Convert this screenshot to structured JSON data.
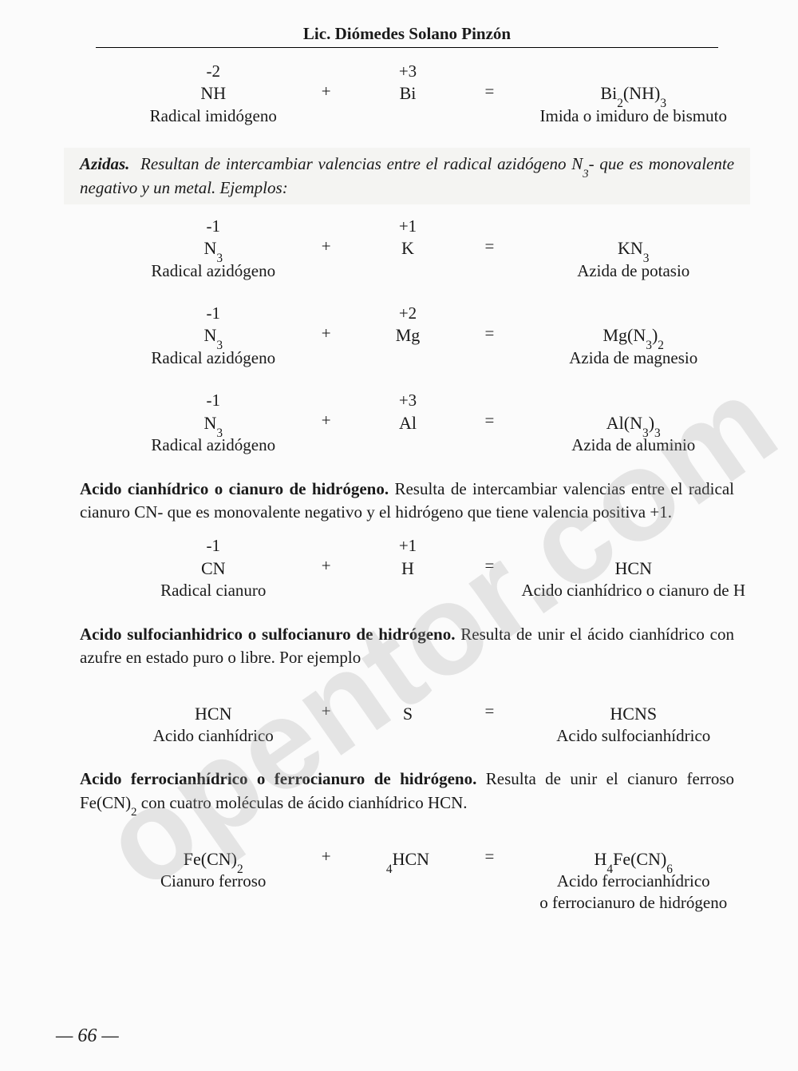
{
  "watermark": "opentor.com",
  "header": "Lic. Diómedes Solano Pinzón",
  "eq1": {
    "left_val": "-2",
    "left_f_pre": "NH",
    "left_label": "Radical imidógeno",
    "mid_val": "+3",
    "mid_f": "Bi",
    "prod_pre": "Bi",
    "prod_sub1": "2",
    "prod_mid": "(NH)",
    "prod_sub2": "3",
    "prod_label": "Imida o imiduro de bismuto"
  },
  "azidas": {
    "title": "Azidas.",
    "text": "Resultan de intercambiar valencias entre el radical azidógeno N",
    "text2": "- que es monovalente negativo y un metal.  Ejemplos:",
    "sub": "3"
  },
  "eq2": {
    "left_val": "-1",
    "left_f": "N",
    "left_sub": "3",
    "left_label": "Radical azidógeno",
    "mid_val": "+1",
    "mid_f": "K",
    "prod_pre": "KN",
    "prod_sub": "3",
    "prod_label": "Azida de potasio"
  },
  "eq3": {
    "left_val": "-1",
    "left_f": "N",
    "left_sub": "3",
    "left_label": "Radical azidógeno",
    "mid_val": "+2",
    "mid_f": "Mg",
    "prod_pre": "Mg(N",
    "prod_sub1": "3",
    "prod_mid": ")",
    "prod_sub2": "2",
    "prod_label": "Azida de magnesio"
  },
  "eq4": {
    "left_val": "-1",
    "left_f": "N",
    "left_sub": "3",
    "left_label": "Radical azidógeno",
    "mid_val": "+3",
    "mid_f": "Al",
    "prod_pre": "Al(N",
    "prod_sub1": "3",
    "prod_mid": ")",
    "prod_sub2": "3",
    "prod_label": "Azida de aluminio"
  },
  "sec1": {
    "title": "Acido cianhídrico o cianuro de hidrógeno.",
    "text": "Resulta de intercambiar valencias entre el radical cianuro CN- que es monovalente negativo y el hidrógeno que tiene valencia positiva +1."
  },
  "eq5": {
    "left_val": "-1",
    "left_f": "CN",
    "left_label": "Radical cianuro",
    "mid_val": "+1",
    "mid_f": "H",
    "prod_f": "HCN",
    "prod_label": "Acido cianhídrico o cianuro de H"
  },
  "sec2": {
    "title": "Acido sulfocianhidrico o sulfocianuro de hidrógeno.",
    "text": "Resulta de unir el ácido cianhídrico con azufre en estado puro o libre.  Por ejemplo"
  },
  "eq6": {
    "left_f": "HCN",
    "left_label": "Acido cianhídrico",
    "mid_f": "S",
    "prod_f": "HCNS",
    "prod_label": "Acido sulfocianhídrico"
  },
  "sec3": {
    "title": "Acido ferrocianhídrico o ferrocianuro de hidrógeno.",
    "text": "Resulta de unir el cianuro ferroso Fe(CN)",
    "text2": " con cuatro moléculas de ácido cianhídrico HCN.",
    "sub": "2"
  },
  "eq7": {
    "left_pre": "Fe(CN)",
    "left_sub": "2",
    "left_label": "Cianuro ferroso",
    "mid_sub": "4",
    "mid_f": "HCN",
    "prod_pre": "H",
    "prod_sub1": "4",
    "prod_mid": "Fe(CN)",
    "prod_sub2": "6",
    "prod_label": "Acido ferrocianhídrico",
    "prod_label2": "o ferrocianuro de hidrógeno"
  },
  "ops": {
    "plus": "+",
    "eq": "="
  },
  "page": "— 66 —"
}
